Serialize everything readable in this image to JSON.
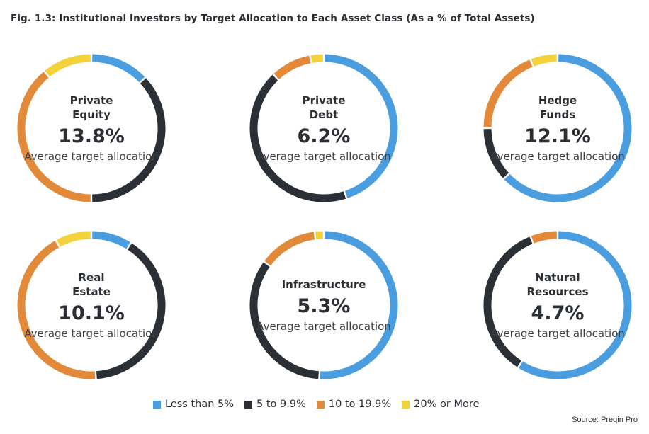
{
  "title": "Fig. 1.3: Institutional Investors by Target Allocation to Each Asset Class (As a % of Total Assets)",
  "source": "Source: Preqin Pro",
  "colors": {
    "less_than_5": "#4a9ee0",
    "5_to_9_9": "#2a3036",
    "10_to_19_9": "#e38a3a",
    "20_or_more": "#f3d23b"
  },
  "chart_data": {
    "type": "pie",
    "style": "donut",
    "categories": [
      "Less than 5%",
      "5 to 9.9%",
      "10 to 19.9%",
      "20% or More"
    ],
    "legend": [
      "Less than 5%",
      "5 to 9.9%",
      "10 to 19.9%",
      "20% or More"
    ],
    "legend_position": "bottom",
    "series": [
      {
        "name": "Private Equity",
        "label_lines": [
          "Private",
          "Equity"
        ],
        "average": "13.8%",
        "values": [
          13,
          37,
          39,
          11
        ]
      },
      {
        "name": "Private Debt",
        "label_lines": [
          "Private",
          "Debt"
        ],
        "average": "6.2%",
        "values": [
          45,
          43,
          9,
          3
        ]
      },
      {
        "name": "Hedge Funds",
        "label_lines": [
          "Hedge",
          "Funds"
        ],
        "average": "12.1%",
        "values": [
          63,
          12,
          19,
          6
        ]
      },
      {
        "name": "Real Estate",
        "label_lines": [
          "Real",
          "Estate"
        ],
        "average": "10.1%",
        "values": [
          9,
          40,
          43,
          8
        ]
      },
      {
        "name": "Infrastructure",
        "label_lines": [
          "Infrastructure"
        ],
        "average": "5.3%",
        "values": [
          51,
          34,
          13,
          2
        ]
      },
      {
        "name": "Natural Resources",
        "label_lines": [
          "Natural",
          "Resources"
        ],
        "average": "4.7%",
        "values": [
          59,
          35,
          6,
          0
        ]
      }
    ],
    "center_subtitle": "Average target allocation"
  }
}
